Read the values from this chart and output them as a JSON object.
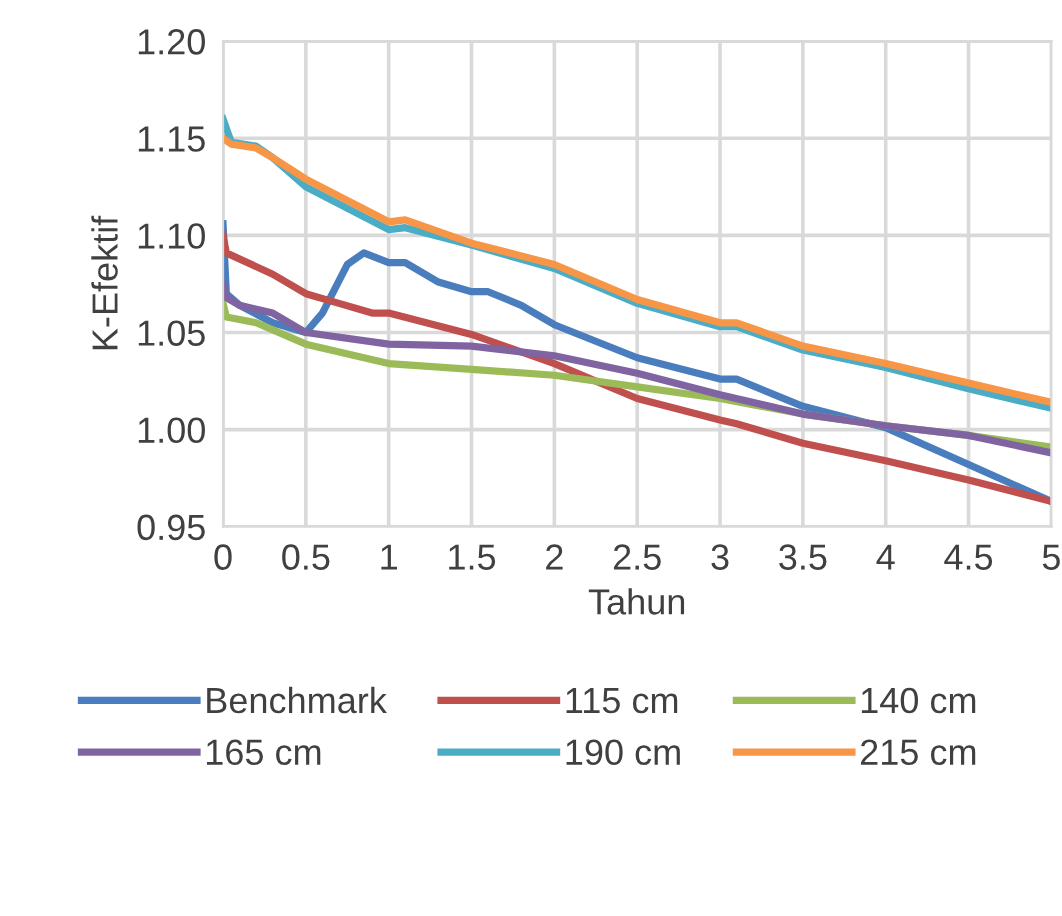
{
  "chart_data": {
    "type": "line",
    "xlabel": "Tahun",
    "ylabel": "K-Efektif",
    "xlim": [
      0,
      5
    ],
    "ylim": [
      0.95,
      1.2
    ],
    "xticks": [
      0,
      0.5,
      1,
      1.5,
      2,
      2.5,
      3,
      3.5,
      4,
      4.5,
      5
    ],
    "yticks": [
      0.95,
      {
        "value": 1.0,
        "label": "1.00"
      },
      1.05,
      {
        "value": 1.1,
        "label": "1.10"
      },
      1.15,
      {
        "value": 1.2,
        "label": "1.20"
      }
    ],
    "grid": true,
    "legend": "bottom",
    "marker": "none",
    "line_style": "solid",
    "series": [
      {
        "name": "Benchmark",
        "color": "#4a7dbd",
        "x": [
          0,
          0.02,
          0.1,
          0.3,
          0.5,
          0.6,
          0.75,
          0.85,
          1,
          1.1,
          1.3,
          1.5,
          1.6,
          1.8,
          2,
          2.5,
          3,
          3.1,
          3.5,
          4,
          4.5,
          5
        ],
        "values": [
          1.106,
          1.07,
          1.064,
          1.055,
          1.05,
          1.06,
          1.085,
          1.091,
          1.086,
          1.086,
          1.076,
          1.071,
          1.071,
          1.064,
          1.054,
          1.037,
          1.026,
          1.026,
          1.012,
          1.001,
          0.982,
          0.963
        ]
      },
      {
        "name": "115 cm",
        "color": "#c0504d",
        "x": [
          0,
          0.02,
          0.3,
          0.5,
          0.7,
          0.9,
          1,
          1.5,
          2,
          2.5,
          3,
          3.1,
          3.5,
          4,
          4.5,
          5
        ],
        "values": [
          1.1,
          1.091,
          1.08,
          1.07,
          1.065,
          1.06,
          1.06,
          1.049,
          1.034,
          1.016,
          1.005,
          1.003,
          0.993,
          0.984,
          0.974,
          0.963
        ]
      },
      {
        "name": "140 cm",
        "color": "#9bbb59",
        "x": [
          0,
          0.02,
          0.2,
          0.5,
          1,
          1.5,
          2,
          2.5,
          3,
          3.5,
          4,
          4.5,
          5
        ],
        "values": [
          1.065,
          1.058,
          1.055,
          1.044,
          1.034,
          1.031,
          1.028,
          1.022,
          1.016,
          1.008,
          1.002,
          0.997,
          0.991
        ]
      },
      {
        "name": "165 cm",
        "color": "#8064a2",
        "x": [
          0,
          0.02,
          0.1,
          0.3,
          0.5,
          1,
          1.5,
          2,
          2.5,
          3,
          3.5,
          4,
          4.5,
          5
        ],
        "values": [
          1.075,
          1.068,
          1.064,
          1.06,
          1.05,
          1.044,
          1.043,
          1.038,
          1.029,
          1.018,
          1.008,
          1.002,
          0.997,
          0.988
        ]
      },
      {
        "name": "190 cm",
        "color": "#4bacc6",
        "x": [
          0,
          0.05,
          0.2,
          0.3,
          0.5,
          1,
          1.1,
          1.5,
          2,
          2.5,
          3,
          3.1,
          3.5,
          4,
          4.5,
          5
        ],
        "values": [
          1.16,
          1.148,
          1.146,
          1.14,
          1.125,
          1.103,
          1.104,
          1.095,
          1.083,
          1.065,
          1.053,
          1.053,
          1.041,
          1.032,
          1.021,
          1.011
        ]
      },
      {
        "name": "215 cm",
        "color": "#f79646",
        "x": [
          0,
          0.05,
          0.2,
          0.3,
          0.5,
          1,
          1.1,
          1.5,
          2,
          2.5,
          3,
          3.1,
          3.5,
          4,
          4.5,
          5
        ],
        "values": [
          1.15,
          1.147,
          1.145,
          1.14,
          1.129,
          1.107,
          1.108,
          1.096,
          1.085,
          1.067,
          1.055,
          1.055,
          1.043,
          1.034,
          1.024,
          1.014
        ]
      }
    ]
  }
}
